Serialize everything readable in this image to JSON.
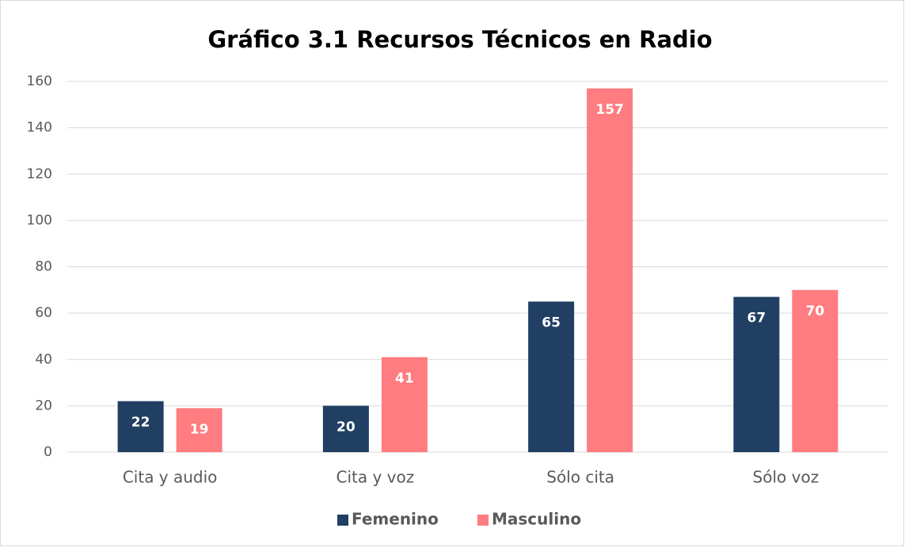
{
  "chart_data": {
    "type": "bar",
    "title": "Gráfico 3.1 Recursos Técnicos en Radio",
    "categories": [
      "Cita y audio",
      "Cita y voz",
      "Sólo cita",
      "Sólo voz"
    ],
    "series": [
      {
        "name": "Femenino",
        "color": "#203f63",
        "values": [
          22,
          20,
          65,
          67
        ]
      },
      {
        "name": "Masculino",
        "color": "#ff7c80",
        "values": [
          19,
          41,
          157,
          70
        ]
      }
    ],
    "ylim": [
      0,
      160
    ],
    "yticks": [
      0,
      20,
      40,
      60,
      80,
      100,
      120,
      140,
      160
    ],
    "grid": true,
    "legend": "bottom"
  }
}
